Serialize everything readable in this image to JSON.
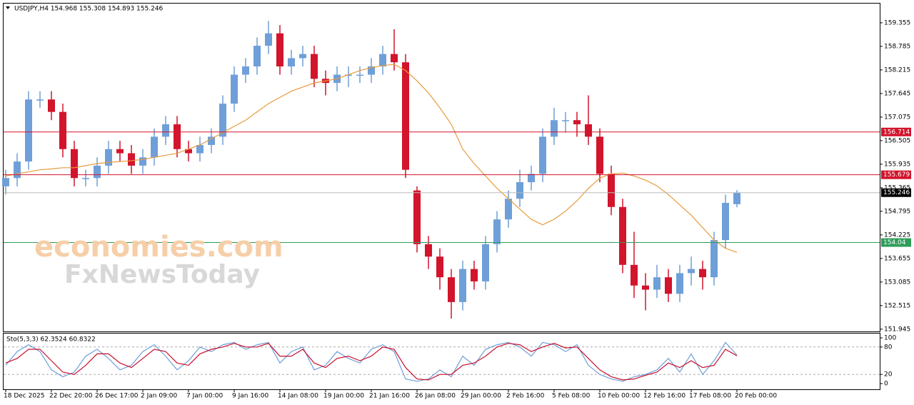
{
  "chart_data": [
    {
      "type": "candlestick",
      "title": "USDJPY,H4 154.968 155.308 154.893 155.246",
      "up_color": "#6f9fd8",
      "down_color": "#d2142c",
      "open": [
        155.4,
        155.6,
        156.0,
        157.5,
        157.5,
        157.2,
        156.3,
        155.6,
        155.6,
        155.9,
        156.3,
        156.2,
        155.9,
        156.1,
        156.6,
        156.9,
        156.3,
        156.2,
        156.4,
        156.6,
        157.4,
        158.1,
        158.3,
        158.8,
        159.1,
        158.3,
        158.5,
        158.6,
        158.0,
        157.9,
        158.1,
        158.1,
        158.1,
        158.3,
        158.6,
        158.4,
        155.3,
        154.0,
        153.7,
        153.2,
        152.6,
        153.4,
        153.1,
        154.0,
        154.6,
        155.1,
        155.5,
        155.7,
        156.6,
        157.0,
        157.0,
        156.9,
        156.6,
        155.7,
        154.9,
        153.5,
        153.0,
        152.9,
        153.2,
        152.8,
        153.3,
        153.4,
        153.2,
        154.1,
        154.968
      ],
      "high": [
        155.8,
        156.2,
        157.7,
        157.7,
        157.7,
        157.4,
        156.5,
        155.8,
        156.1,
        156.5,
        156.5,
        156.4,
        156.3,
        156.8,
        157.1,
        157.1,
        156.5,
        156.6,
        156.8,
        157.6,
        158.3,
        158.5,
        159.0,
        159.4,
        159.3,
        158.7,
        158.8,
        158.8,
        158.2,
        158.3,
        158.3,
        158.3,
        158.5,
        158.8,
        159.2,
        158.6,
        155.4,
        154.2,
        153.9,
        153.4,
        153.6,
        153.6,
        154.2,
        154.8,
        155.3,
        155.8,
        155.9,
        156.8,
        157.3,
        157.2,
        157.2,
        157.6,
        156.8,
        155.9,
        155.1,
        154.3,
        153.3,
        153.5,
        153.4,
        153.5,
        153.7,
        153.6,
        154.3,
        155.2,
        155.308
      ],
      "low": [
        155.2,
        155.4,
        155.8,
        157.3,
        157.0,
        156.1,
        155.4,
        155.4,
        155.4,
        155.7,
        156.0,
        155.7,
        155.7,
        155.9,
        156.4,
        156.1,
        156.0,
        156.0,
        156.2,
        156.4,
        157.2,
        157.9,
        158.1,
        158.6,
        158.1,
        158.1,
        158.3,
        157.8,
        157.6,
        157.7,
        157.8,
        157.9,
        157.9,
        158.1,
        158.2,
        155.6,
        153.8,
        153.4,
        152.9,
        152.2,
        152.4,
        152.9,
        152.9,
        153.8,
        154.4,
        154.9,
        155.3,
        155.5,
        156.4,
        156.7,
        156.6,
        156.4,
        155.5,
        154.7,
        153.3,
        152.7,
        152.4,
        152.7,
        152.6,
        152.6,
        153.0,
        152.9,
        153.0,
        153.9,
        154.893
      ],
      "close": [
        155.6,
        156.0,
        157.5,
        157.5,
        157.2,
        156.3,
        155.6,
        155.6,
        155.9,
        156.3,
        156.2,
        155.9,
        156.1,
        156.6,
        156.9,
        156.3,
        156.2,
        156.4,
        156.6,
        157.4,
        158.1,
        158.3,
        158.8,
        159.1,
        158.3,
        158.5,
        158.6,
        158.0,
        157.9,
        158.1,
        158.1,
        158.1,
        158.3,
        158.6,
        158.4,
        155.8,
        154.0,
        153.7,
        153.2,
        152.6,
        153.4,
        153.1,
        154.0,
        154.6,
        155.1,
        155.5,
        155.7,
        156.6,
        157.0,
        157.0,
        156.9,
        156.6,
        155.7,
        154.9,
        153.5,
        153.0,
        152.9,
        153.2,
        152.8,
        153.3,
        153.4,
        153.2,
        154.1,
        155.0,
        155.246
      ],
      "series": [
        {
          "color": "#e89a3c",
          "values": [
            155.65,
            155.7,
            155.75,
            155.8,
            155.82,
            155.85,
            155.85,
            155.9,
            155.95,
            155.98,
            156.0,
            156.02,
            156.05,
            156.1,
            156.15,
            156.2,
            156.3,
            156.4,
            156.55,
            156.7,
            156.85,
            157.0,
            157.2,
            157.4,
            157.55,
            157.7,
            157.8,
            157.9,
            157.95,
            158.0,
            158.1,
            158.2,
            158.27,
            158.32,
            158.35,
            158.2,
            157.95,
            157.66,
            157.3,
            156.9,
            156.3,
            155.95,
            155.65,
            155.35,
            155.1,
            154.85,
            154.6,
            154.47,
            154.6,
            154.8,
            155.05,
            155.35,
            155.6,
            155.7,
            155.72,
            155.65,
            155.55,
            155.41,
            155.2,
            154.95,
            154.7,
            154.4,
            154.1,
            153.9,
            153.8
          ]
        }
      ],
      "levels": [
        {
          "value": 156.714,
          "color": "#d2142c"
        },
        {
          "value": 155.679,
          "color": "#d2142c"
        },
        {
          "value": 155.246,
          "color": "#000000"
        },
        {
          "value": 154.04,
          "color": "#2e9e5a"
        }
      ],
      "ylim": [
        151.89,
        159.82
      ],
      "yticks": [
        159.355,
        158.785,
        158.215,
        157.645,
        157.075,
        156.505,
        155.935,
        155.365,
        154.795,
        154.225,
        153.655,
        153.085,
        152.515,
        151.945
      ],
      "watermark": [
        "economies.com",
        "FxNewsToday"
      ]
    },
    {
      "type": "line",
      "title": "Sto(5,3,3) 62.3524 60.8322",
      "series": [
        {
          "color": "#6f9fd8",
          "values": [
            40,
            70,
            85,
            70,
            30,
            15,
            25,
            60,
            75,
            55,
            30,
            40,
            70,
            85,
            60,
            30,
            50,
            80,
            70,
            85,
            90,
            75,
            85,
            90,
            45,
            70,
            80,
            30,
            40,
            70,
            55,
            45,
            75,
            85,
            70,
            10,
            5,
            10,
            30,
            15,
            60,
            40,
            75,
            85,
            90,
            80,
            60,
            90,
            85,
            70,
            85,
            40,
            20,
            10,
            5,
            15,
            20,
            30,
            55,
            25,
            65,
            20,
            50,
            90,
            62.3524
          ]
        },
        {
          "color": "#c8102e",
          "values": [
            45,
            55,
            75,
            75,
            50,
            25,
            20,
            40,
            65,
            65,
            45,
            35,
            55,
            75,
            70,
            45,
            40,
            65,
            75,
            80,
            88,
            80,
            80,
            88,
            60,
            60,
            75,
            45,
            35,
            55,
            60,
            50,
            60,
            80,
            75,
            35,
            10,
            8,
            20,
            20,
            40,
            45,
            60,
            80,
            88,
            85,
            70,
            80,
            88,
            78,
            80,
            55,
            30,
            15,
            8,
            10,
            18,
            25,
            45,
            35,
            50,
            35,
            40,
            75,
            60.8322
          ]
        }
      ],
      "levels": [
        80,
        20
      ],
      "ylim": [
        -12.5,
        109.4
      ],
      "yticks": [
        100,
        80,
        20,
        0
      ],
      "xticks": [
        {
          "value": 0,
          "label": "18 Dec 2025"
        },
        {
          "value": 4,
          "label": "22 Dec 20:00"
        },
        {
          "value": 8,
          "label": "26 Dec 17:00"
        },
        {
          "value": 12,
          "label": "2 Jan 09:00"
        },
        {
          "value": 16,
          "label": "7 Jan 00:00"
        },
        {
          "value": 20,
          "label": "9 Jan 16:00"
        },
        {
          "value": 24,
          "label": "14 Jan 08:00"
        },
        {
          "value": 28,
          "label": "19 Jan 00:00"
        },
        {
          "value": 32,
          "label": "21 Jan 16:00"
        },
        {
          "value": 36,
          "label": "26 Jan 08:00"
        },
        {
          "value": 40,
          "label": "29 Jan 00:00"
        },
        {
          "value": 44,
          "label": "2 Feb 16:00"
        },
        {
          "value": 48,
          "label": "5 Feb 08:00"
        },
        {
          "value": 52,
          "label": "10 Feb 00:00"
        },
        {
          "value": 56,
          "label": "12 Feb 16:00"
        },
        {
          "value": 60,
          "label": "17 Feb 08:00"
        },
        {
          "value": 64,
          "label": "20 Feb 00:00"
        }
      ]
    }
  ]
}
